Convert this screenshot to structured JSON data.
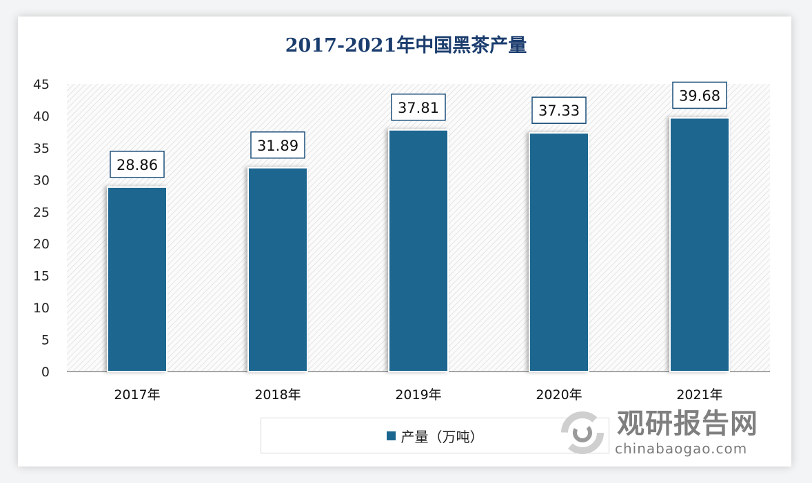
{
  "chart_data": {
    "type": "bar",
    "title": "2017-2021年中国黑茶产量",
    "categories": [
      "2017年",
      "2018年",
      "2019年",
      "2020年",
      "2021年"
    ],
    "series": [
      {
        "name": "产量（万吨）",
        "values": [
          28.86,
          31.89,
          37.81,
          37.33,
          39.68
        ]
      }
    ],
    "data_labels": [
      "28.86",
      "31.89",
      "37.81",
      "37.33",
      "39.68"
    ],
    "ylim": [
      0,
      45
    ],
    "yticks": [
      "0",
      "5",
      "10",
      "15",
      "20",
      "25",
      "30",
      "35",
      "40",
      "45"
    ],
    "xlabel": "",
    "ylabel": "",
    "grid": false,
    "legend": "bottom",
    "bar_color": "#1b6690",
    "title_color": "#1b3d6e"
  },
  "watermark": {
    "cn": "观研报告网",
    "en": "chinabaogao.com"
  }
}
